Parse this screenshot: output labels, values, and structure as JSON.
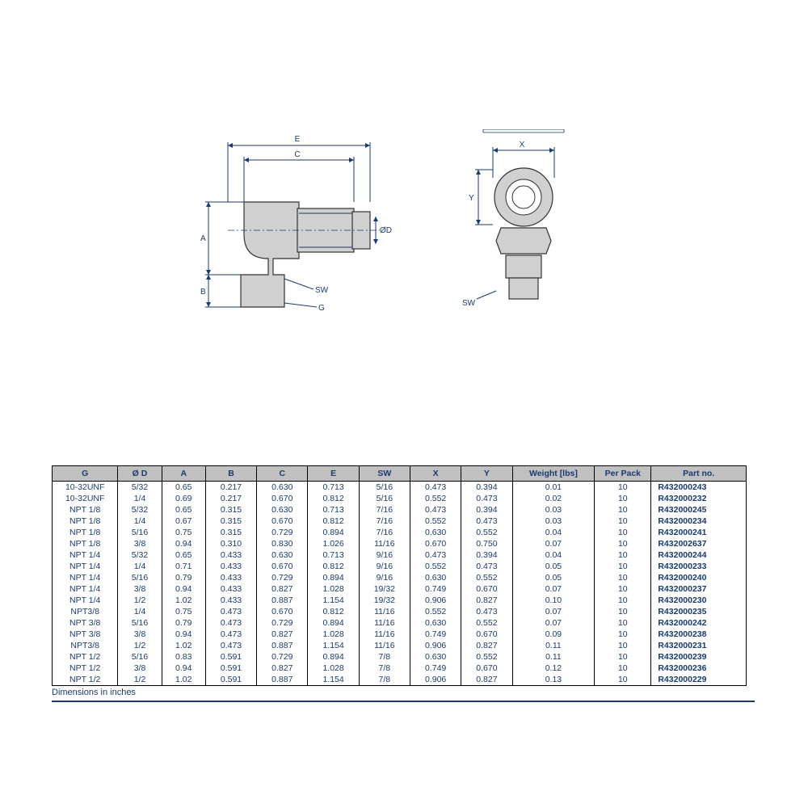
{
  "diagram": {
    "labels": {
      "E": "E",
      "C": "C",
      "A": "A",
      "B": "B",
      "OD": "ØD",
      "SW": "SW",
      "G": "G",
      "X2": "X",
      "X": "X",
      "Y": "Y",
      "SW2": "SW"
    },
    "colors": {
      "line": "#1a3a6e",
      "fill": "#c8c8c8",
      "stroke": "#333333"
    }
  },
  "table": {
    "headers": [
      "G",
      "Ø D",
      "A",
      "B",
      "C",
      "E",
      "SW",
      "X",
      "Y",
      "Weight [lbs]",
      "Per Pack",
      "Part no."
    ],
    "rows": [
      [
        "10-32UNF",
        "5/32",
        "0.65",
        "0.217",
        "0.630",
        "0.713",
        "5/16",
        "0.473",
        "0.394",
        "0.01",
        "10",
        "R432000243"
      ],
      [
        "10-32UNF",
        "1/4",
        "0.69",
        "0.217",
        "0.670",
        "0.812",
        "5/16",
        "0.552",
        "0.473",
        "0.02",
        "10",
        "R432000232"
      ],
      [
        "NPT 1/8",
        "5/32",
        "0.65",
        "0.315",
        "0.630",
        "0.713",
        "7/16",
        "0.473",
        "0.394",
        "0.03",
        "10",
        "R432000245"
      ],
      [
        "NPT 1/8",
        "1/4",
        "0.67",
        "0.315",
        "0.670",
        "0.812",
        "7/16",
        "0.552",
        "0.473",
        "0.03",
        "10",
        "R432000234"
      ],
      [
        "NPT 1/8",
        "5/16",
        "0.75",
        "0.315",
        "0.729",
        "0.894",
        "7/16",
        "0.630",
        "0.552",
        "0.04",
        "10",
        "R432000241"
      ],
      [
        "NPT 1/8",
        "3/8",
        "0.94",
        "0.310",
        "0.830",
        "1.026",
        "11/16",
        "0.670",
        "0.750",
        "0.07",
        "10",
        "R432002637"
      ],
      [
        "NPT 1/4",
        "5/32",
        "0.65",
        "0.433",
        "0.630",
        "0.713",
        "9/16",
        "0.473",
        "0.394",
        "0.04",
        "10",
        "R432000244"
      ],
      [
        "NPT 1/4",
        "1/4",
        "0.71",
        "0.433",
        "0.670",
        "0.812",
        "9/16",
        "0.552",
        "0.473",
        "0.05",
        "10",
        "R432000233"
      ],
      [
        "NPT 1/4",
        "5/16",
        "0.79",
        "0.433",
        "0.729",
        "0.894",
        "9/16",
        "0.630",
        "0.552",
        "0.05",
        "10",
        "R432000240"
      ],
      [
        "NPT 1/4",
        "3/8",
        "0.94",
        "0.433",
        "0.827",
        "1.028",
        "19/32",
        "0.749",
        "0.670",
        "0.07",
        "10",
        "R432000237"
      ],
      [
        "NPT 1/4",
        "1/2",
        "1.02",
        "0.433",
        "0.887",
        "1.154",
        "19/32",
        "0.906",
        "0.827",
        "0.10",
        "10",
        "R432000230"
      ],
      [
        "NPT3/8",
        "1/4",
        "0.75",
        "0.473",
        "0.670",
        "0.812",
        "11/16",
        "0.552",
        "0.473",
        "0.07",
        "10",
        "R432000235"
      ],
      [
        "NPT 3/8",
        "5/16",
        "0.79",
        "0.473",
        "0.729",
        "0.894",
        "11/16",
        "0.630",
        "0.552",
        "0.07",
        "10",
        "R432000242"
      ],
      [
        "NPT 3/8",
        "3/8",
        "0.94",
        "0.473",
        "0.827",
        "1.028",
        "11/16",
        "0.749",
        "0.670",
        "0.09",
        "10",
        "R432000238"
      ],
      [
        "NPT3/8",
        "1/2",
        "1.02",
        "0.473",
        "0.887",
        "1.154",
        "11/16",
        "0.906",
        "0.827",
        "0.11",
        "10",
        "R432000231"
      ],
      [
        "NPT 1/2",
        "5/16",
        "0.83",
        "0.591",
        "0.729",
        "0.894",
        "7/8",
        "0.630",
        "0.552",
        "0.11",
        "10",
        "R432000239"
      ],
      [
        "NPT 1/2",
        "3/8",
        "0.94",
        "0.591",
        "0.827",
        "1.028",
        "7/8",
        "0.749",
        "0.670",
        "0.12",
        "10",
        "R432000236"
      ],
      [
        "NPT 1/2",
        "1/2",
        "1.02",
        "0.591",
        "0.887",
        "1.154",
        "7/8",
        "0.906",
        "0.827",
        "0.13",
        "10",
        "R432000229"
      ]
    ],
    "footnote": "Dimensions in inches"
  }
}
